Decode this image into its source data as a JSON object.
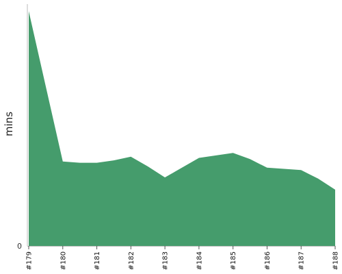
{
  "chart_data": {
    "type": "area",
    "ylabel": "mins",
    "ylim": [
      0,
      100
    ],
    "y_ticks": [
      {
        "value": 0,
        "label": "0"
      }
    ],
    "x_ticks": [
      "#179",
      "#180",
      "#181",
      "#182",
      "#183",
      "#184",
      "#185",
      "#186",
      "#187",
      "#188"
    ],
    "points": [
      {
        "x": 179.0,
        "y": 96.0
      },
      {
        "x": 180.0,
        "y": 34.5
      },
      {
        "x": 180.5,
        "y": 34.0
      },
      {
        "x": 181.0,
        "y": 34.0
      },
      {
        "x": 181.5,
        "y": 35.0
      },
      {
        "x": 182.0,
        "y": 36.5
      },
      {
        "x": 182.5,
        "y": 32.5
      },
      {
        "x": 183.0,
        "y": 28.0
      },
      {
        "x": 183.5,
        "y": 32.0
      },
      {
        "x": 184.0,
        "y": 36.0
      },
      {
        "x": 184.5,
        "y": 37.0
      },
      {
        "x": 185.0,
        "y": 38.0
      },
      {
        "x": 185.5,
        "y": 35.5
      },
      {
        "x": 186.0,
        "y": 32.0
      },
      {
        "x": 186.5,
        "y": 31.5
      },
      {
        "x": 187.0,
        "y": 31.0
      },
      {
        "x": 187.5,
        "y": 27.5
      },
      {
        "x": 188.0,
        "y": 23.0
      }
    ],
    "xlim": [
      179,
      188
    ],
    "grid": false,
    "colors": {
      "fill": "#459c6c",
      "axis": "#bbbbbb",
      "tick": "#555555"
    }
  }
}
